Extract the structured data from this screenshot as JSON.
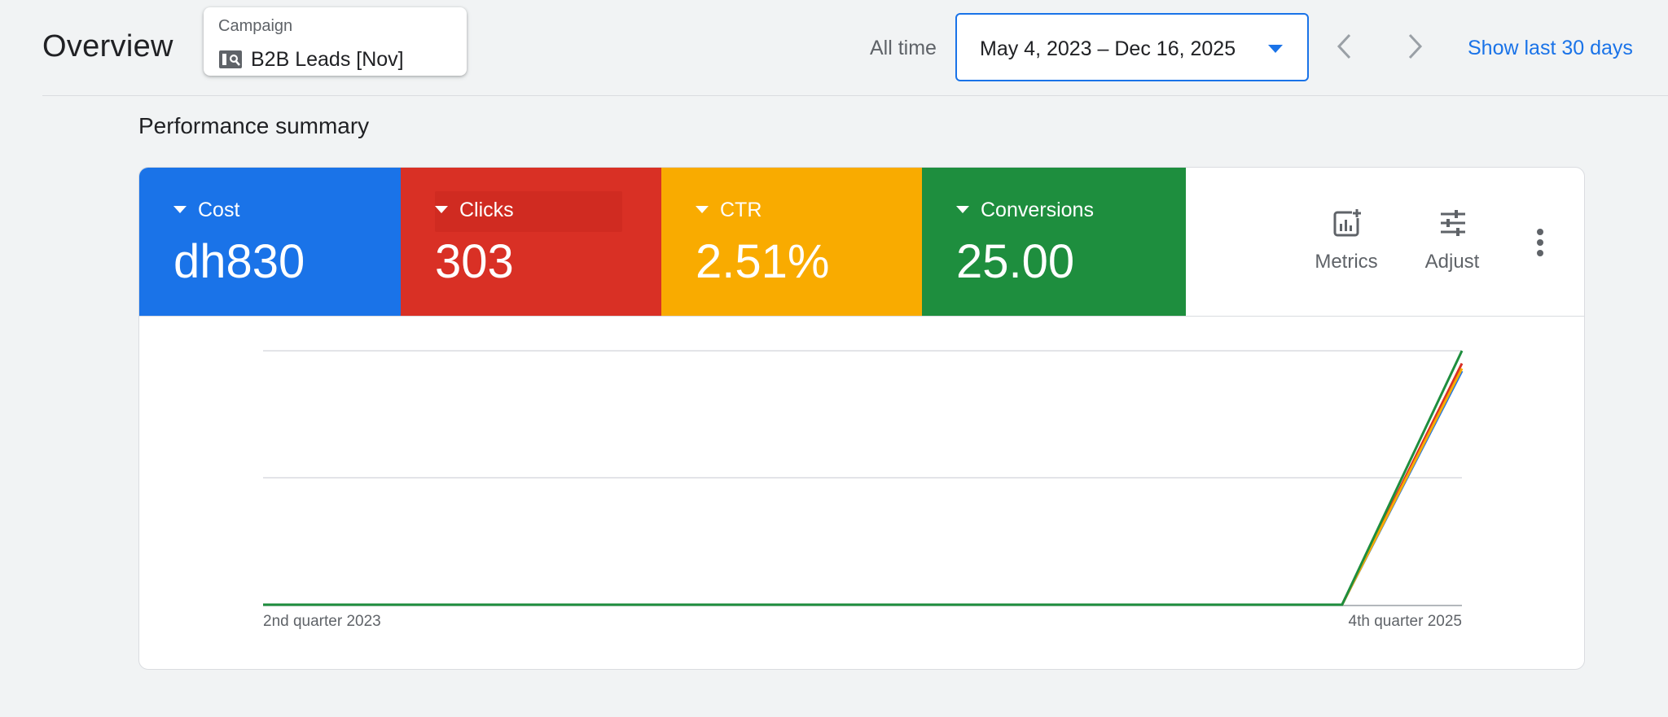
{
  "header": {
    "title": "Overview",
    "campaign": {
      "label": "Campaign",
      "name": "B2B Leads [Nov]",
      "icon": "search-campaign-icon"
    },
    "range_label": "All time",
    "date_range": "May 4, 2023 – Dec 16, 2025",
    "show_last_label": "Show last 30 days"
  },
  "summary": {
    "title": "Performance summary",
    "metrics": [
      {
        "label": "Cost",
        "value": "dh830",
        "color": "#1a73e8"
      },
      {
        "label": "Clicks",
        "value": "303",
        "color": "#d93025"
      },
      {
        "label": "CTR",
        "value": "2.51%",
        "color": "#f9ab00"
      },
      {
        "label": "Conversions",
        "value": "25.00",
        "color": "#1e8e3e"
      }
    ],
    "tools": {
      "metrics_label": "Metrics",
      "adjust_label": "Adjust"
    }
  },
  "chart_data": {
    "type": "line",
    "x": [
      "2nd quarter 2023",
      "3rd quarter 2023",
      "4th quarter 2023",
      "1st quarter 2024",
      "2nd quarter 2024",
      "3rd quarter 2024",
      "4th quarter 2024",
      "1st quarter 2025",
      "2nd quarter 2025",
      "3rd quarter 2025",
      "4th quarter 2025"
    ],
    "tick_labels": [
      "2nd quarter 2023",
      "4th quarter 2025"
    ],
    "series": [
      {
        "color": "#1a73e8",
        "values": [
          0,
          0,
          0,
          0,
          0,
          0,
          0,
          0,
          0,
          0,
          0.92
        ]
      },
      {
        "color": "#d93025",
        "values": [
          0,
          0,
          0,
          0,
          0,
          0,
          0,
          0,
          0,
          0,
          0.95
        ]
      },
      {
        "color": "#f9ab00",
        "values": [
          0,
          0,
          0,
          0,
          0,
          0,
          0,
          0,
          0,
          0,
          0.93
        ]
      },
      {
        "color": "#1e8e3e",
        "values": [
          0,
          0,
          0,
          0,
          0,
          0,
          0,
          0,
          0,
          0,
          1.0
        ]
      }
    ],
    "ylim": [
      0,
      1
    ],
    "grid": true,
    "legend": "none"
  }
}
